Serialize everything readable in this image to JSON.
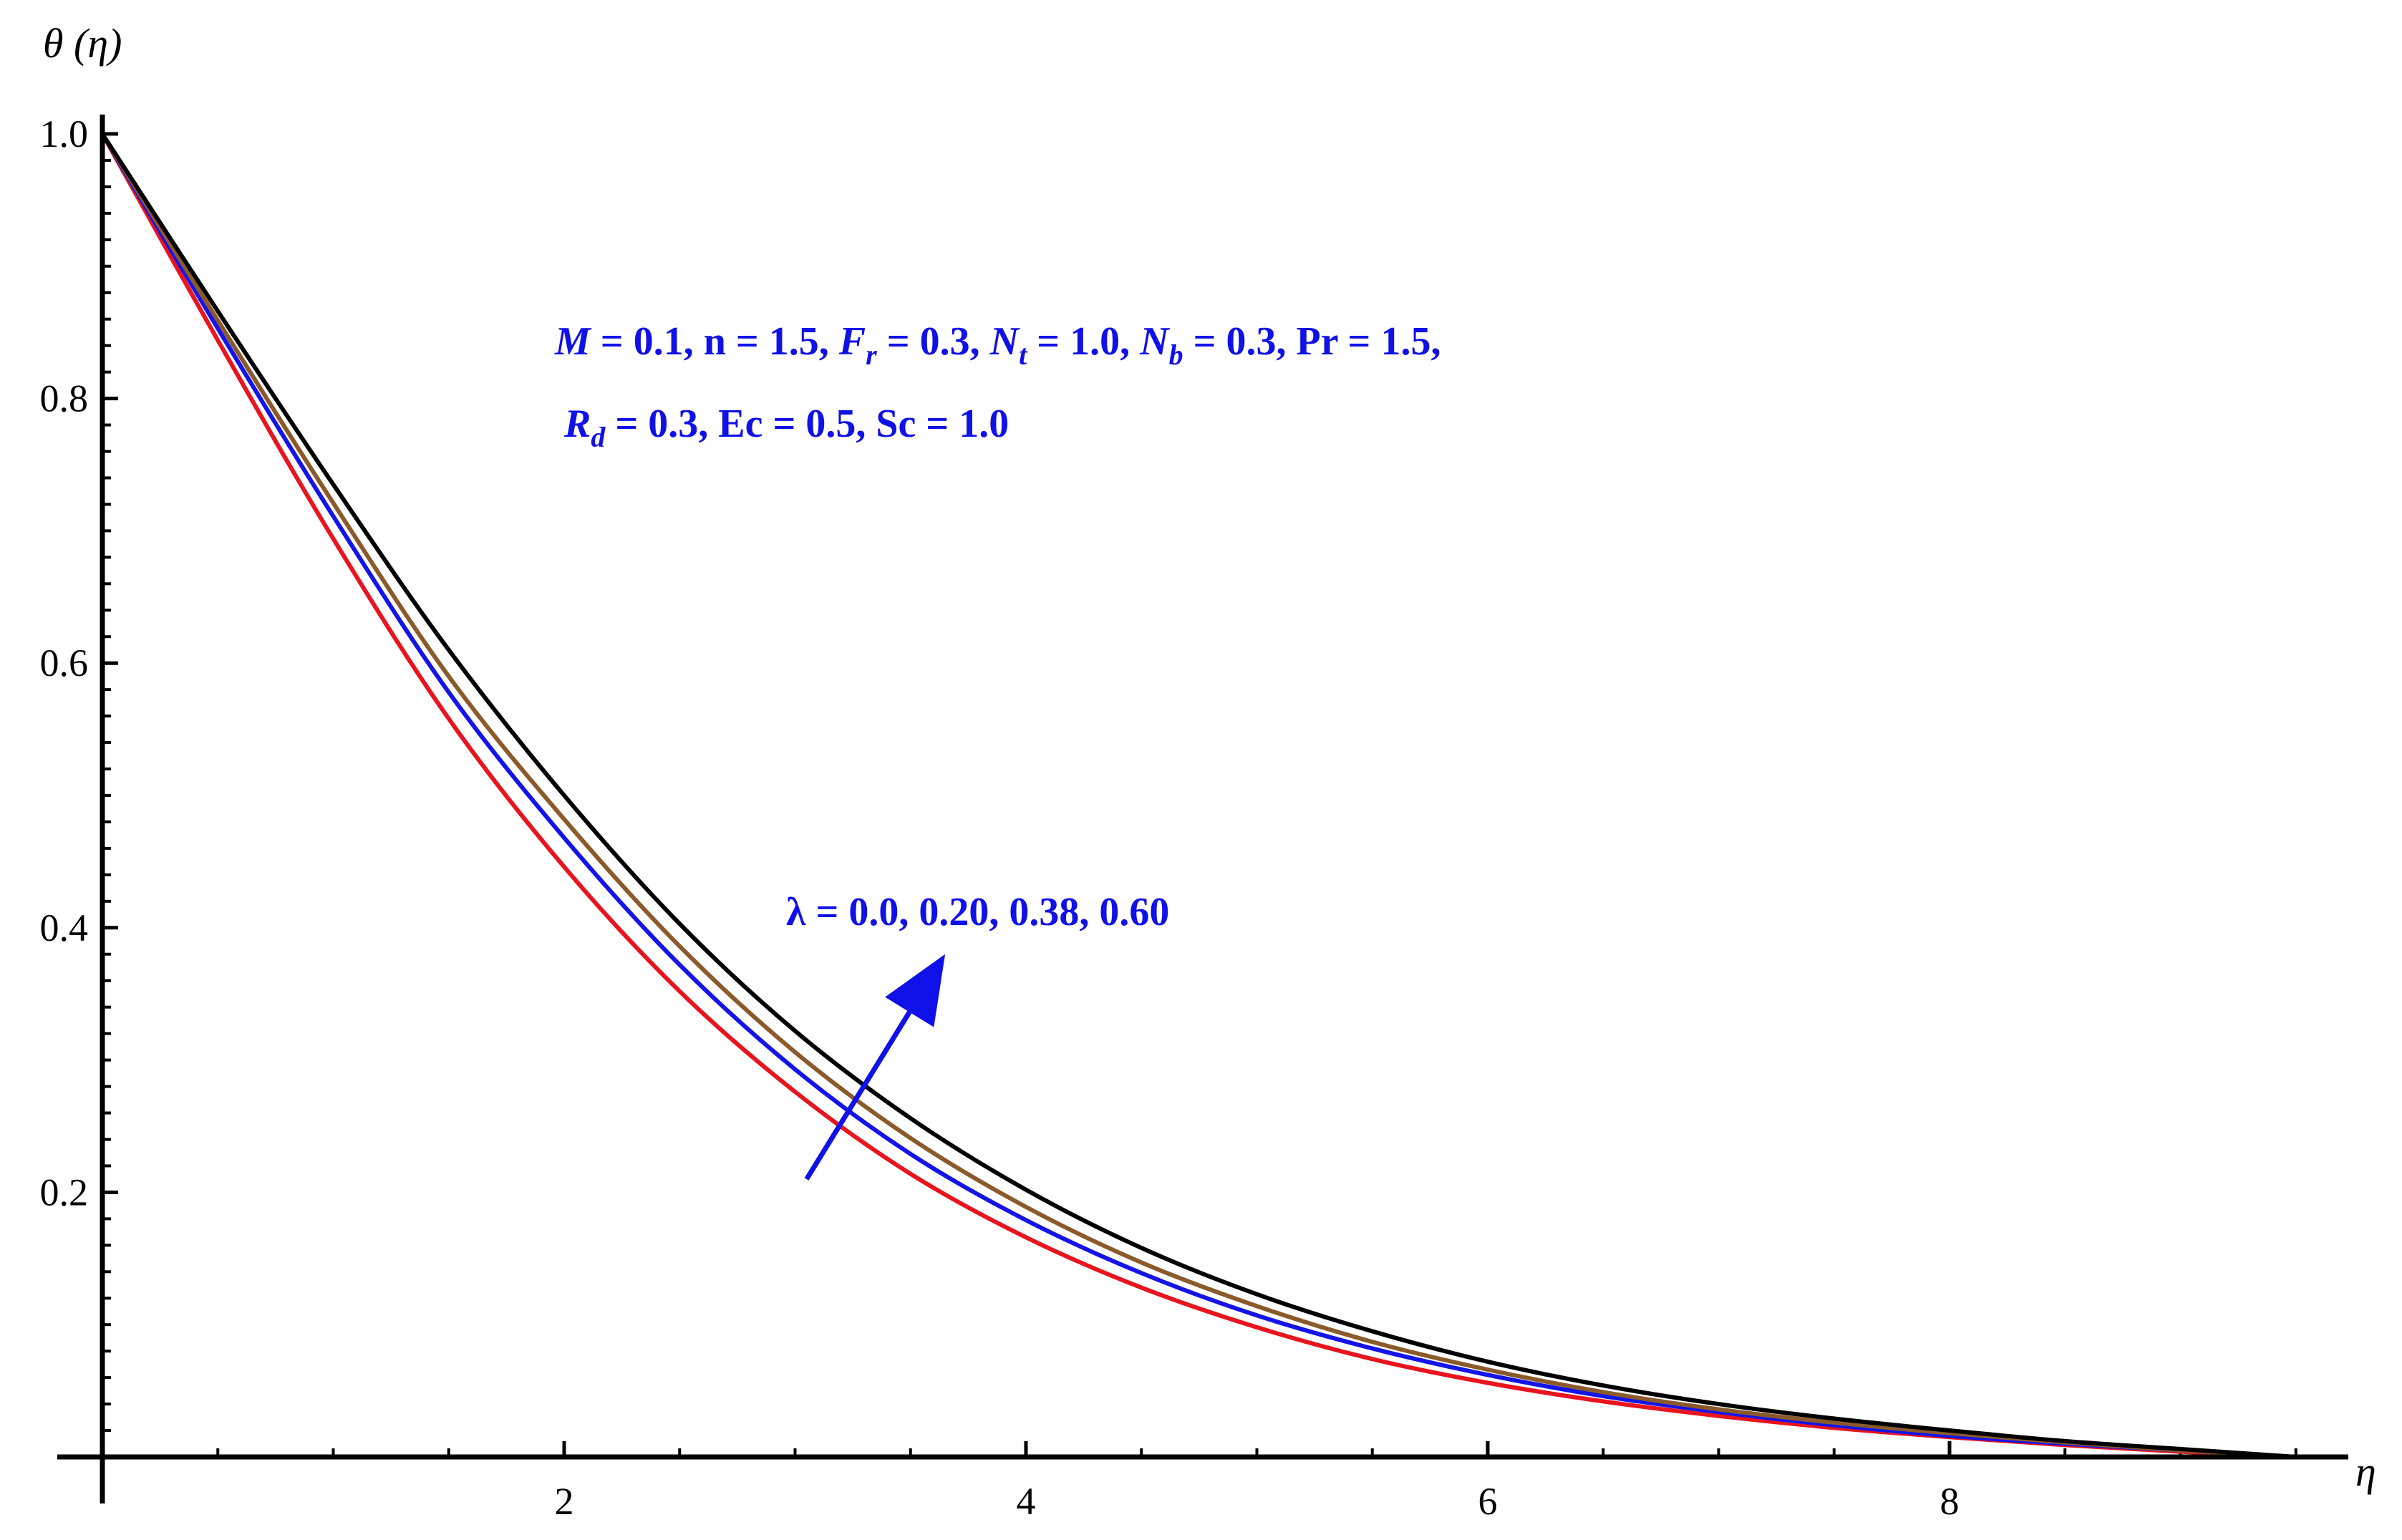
{
  "chart_data": {
    "type": "line",
    "xlabel": "η",
    "ylabel": "θ (η)",
    "xlim": [
      0,
      9.5
    ],
    "ylim": [
      0,
      1.0
    ],
    "x_ticks": [
      2,
      4,
      6,
      8
    ],
    "x_tick_labels": [
      "2",
      "4",
      "6",
      "8"
    ],
    "y_ticks": [
      0.2,
      0.4,
      0.6,
      0.8,
      1.0
    ],
    "y_tick_labels": [
      "0.2",
      "0.4",
      "0.6",
      "0.8",
      "1.0"
    ],
    "grid": false,
    "x": [
      0,
      0.5,
      1,
      1.5,
      2,
      2.5,
      3,
      3.5,
      4,
      4.5,
      5,
      5.5,
      6,
      6.5,
      7,
      7.5,
      8,
      8.5,
      9,
      9.5
    ],
    "series": [
      {
        "color": "#e8141e",
        "values": [
          1.0,
          0.844,
          0.694,
          0.558,
          0.446,
          0.352,
          0.276,
          0.214,
          0.166,
          0.128,
          0.098,
          0.074,
          0.056,
          0.042,
          0.031,
          0.022,
          0.015,
          0.009,
          0.004,
          0.0
        ]
      },
      {
        "color": "#1414e8",
        "values": [
          1.0,
          0.853,
          0.711,
          0.578,
          0.468,
          0.372,
          0.293,
          0.229,
          0.179,
          0.139,
          0.107,
          0.082,
          0.062,
          0.046,
          0.034,
          0.024,
          0.016,
          0.01,
          0.005,
          0.0
        ]
      },
      {
        "color": "#8b5a2b",
        "values": [
          1.0,
          0.859,
          0.721,
          0.59,
          0.482,
          0.386,
          0.306,
          0.241,
          0.189,
          0.147,
          0.114,
          0.087,
          0.066,
          0.049,
          0.036,
          0.026,
          0.018,
          0.011,
          0.005,
          0.0
        ]
      },
      {
        "color": "#000000",
        "values": [
          1.0,
          0.866,
          0.735,
          0.61,
          0.5,
          0.403,
          0.322,
          0.256,
          0.202,
          0.158,
          0.123,
          0.095,
          0.072,
          0.054,
          0.04,
          0.029,
          0.02,
          0.012,
          0.006,
          0.0
        ]
      }
    ],
    "annotations": {
      "params_line1": "M = 0.1, n = 1.5, F_r = 0.3, N_t = 1.0, N_b = 0.3, Pr = 1.5,",
      "params_line2": "R_d = 0.3, Ec = 0.5, Sc = 1.0",
      "lambda_label": "λ = 0.0, 0.20, 0.38, 0.60"
    },
    "arrow": {
      "from": [
        3.05,
        0.21
      ],
      "to": [
        3.65,
        0.38
      ],
      "color": "#1010e8"
    }
  }
}
